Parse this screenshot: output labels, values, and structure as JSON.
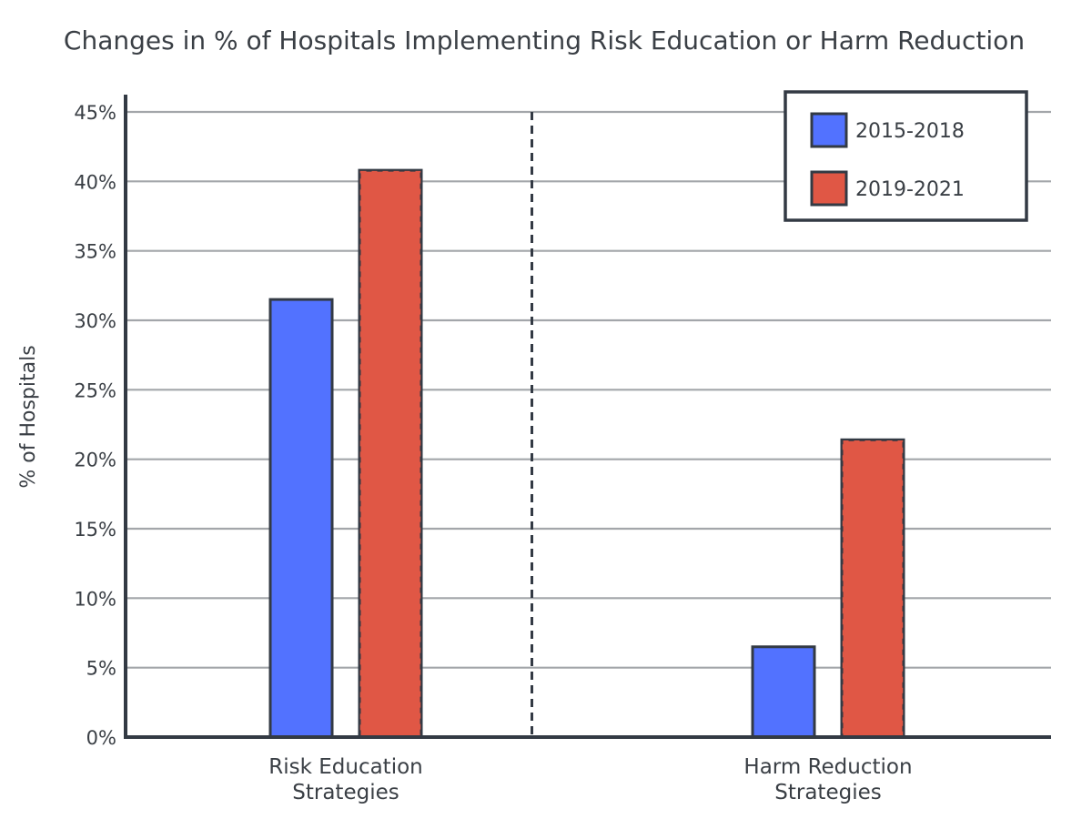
{
  "chart_data": {
    "type": "bar",
    "title": "Changes in % of Hospitals Implementing Risk Education or Harm Reduction",
    "ylabel": "% of Hospitals",
    "xlabel": "",
    "categories": [
      [
        "Risk Education",
        "Strategies"
      ],
      [
        "Harm Reduction",
        "Strategies"
      ]
    ],
    "series": [
      {
        "name": "2015-2018",
        "color": "#5272ff",
        "values": [
          31.5,
          6.5
        ]
      },
      {
        "name": "2019-2021",
        "color": "#e05745",
        "values": [
          40.8,
          21.4
        ]
      }
    ],
    "ylim": [
      0,
      45
    ],
    "yticks": [
      0,
      5,
      10,
      15,
      20,
      25,
      30,
      35,
      40,
      45
    ],
    "ytick_suffix": "%",
    "grid": true,
    "legend": "top-right",
    "category_divider": "dashed"
  }
}
